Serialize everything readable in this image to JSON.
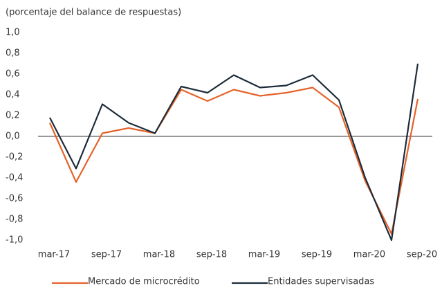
{
  "chart_data": {
    "type": "line",
    "subtitle": "(porcentaje del balance de respuestas)",
    "categories": [
      "mar-17",
      null,
      "sep-17",
      null,
      "mar-18",
      null,
      "sep-18",
      null,
      "mar-19",
      null,
      "sep-19",
      null,
      "mar-20",
      null,
      "sep-20"
    ],
    "series": [
      {
        "name": "Mercado de microcrédito",
        "color": "#e5622a",
        "values": [
          0.13,
          -0.44,
          0.03,
          0.08,
          0.03,
          0.45,
          0.34,
          0.45,
          0.39,
          0.42,
          0.47,
          0.28,
          -0.43,
          -0.94,
          0.36
        ]
      },
      {
        "name": "Entidades supervisadas",
        "color": "#1c2b39",
        "values": [
          0.18,
          -0.31,
          0.31,
          0.13,
          0.03,
          0.48,
          0.42,
          0.59,
          0.47,
          0.49,
          0.59,
          0.35,
          -0.4,
          -1.0,
          0.7
        ]
      }
    ],
    "ylim": [
      -1,
      1
    ],
    "yticks": [
      {
        "value": 1,
        "label": "1,0"
      },
      {
        "value": 0.8,
        "label": "0,8"
      },
      {
        "value": 0.6,
        "label": "0,6"
      },
      {
        "value": 0.4,
        "label": "0,4"
      },
      {
        "value": 0.2,
        "label": "0,2"
      },
      {
        "value": 0,
        "label": "0,0"
      },
      {
        "value": -0.2,
        "label": "-0,2"
      },
      {
        "value": -0.4,
        "label": "-0,4"
      },
      {
        "value": -0.6,
        "label": "-0,6"
      },
      {
        "value": -0.8,
        "label": "-0,8"
      },
      {
        "value": -1,
        "label": "-1,0"
      }
    ],
    "legend": "bottom"
  }
}
